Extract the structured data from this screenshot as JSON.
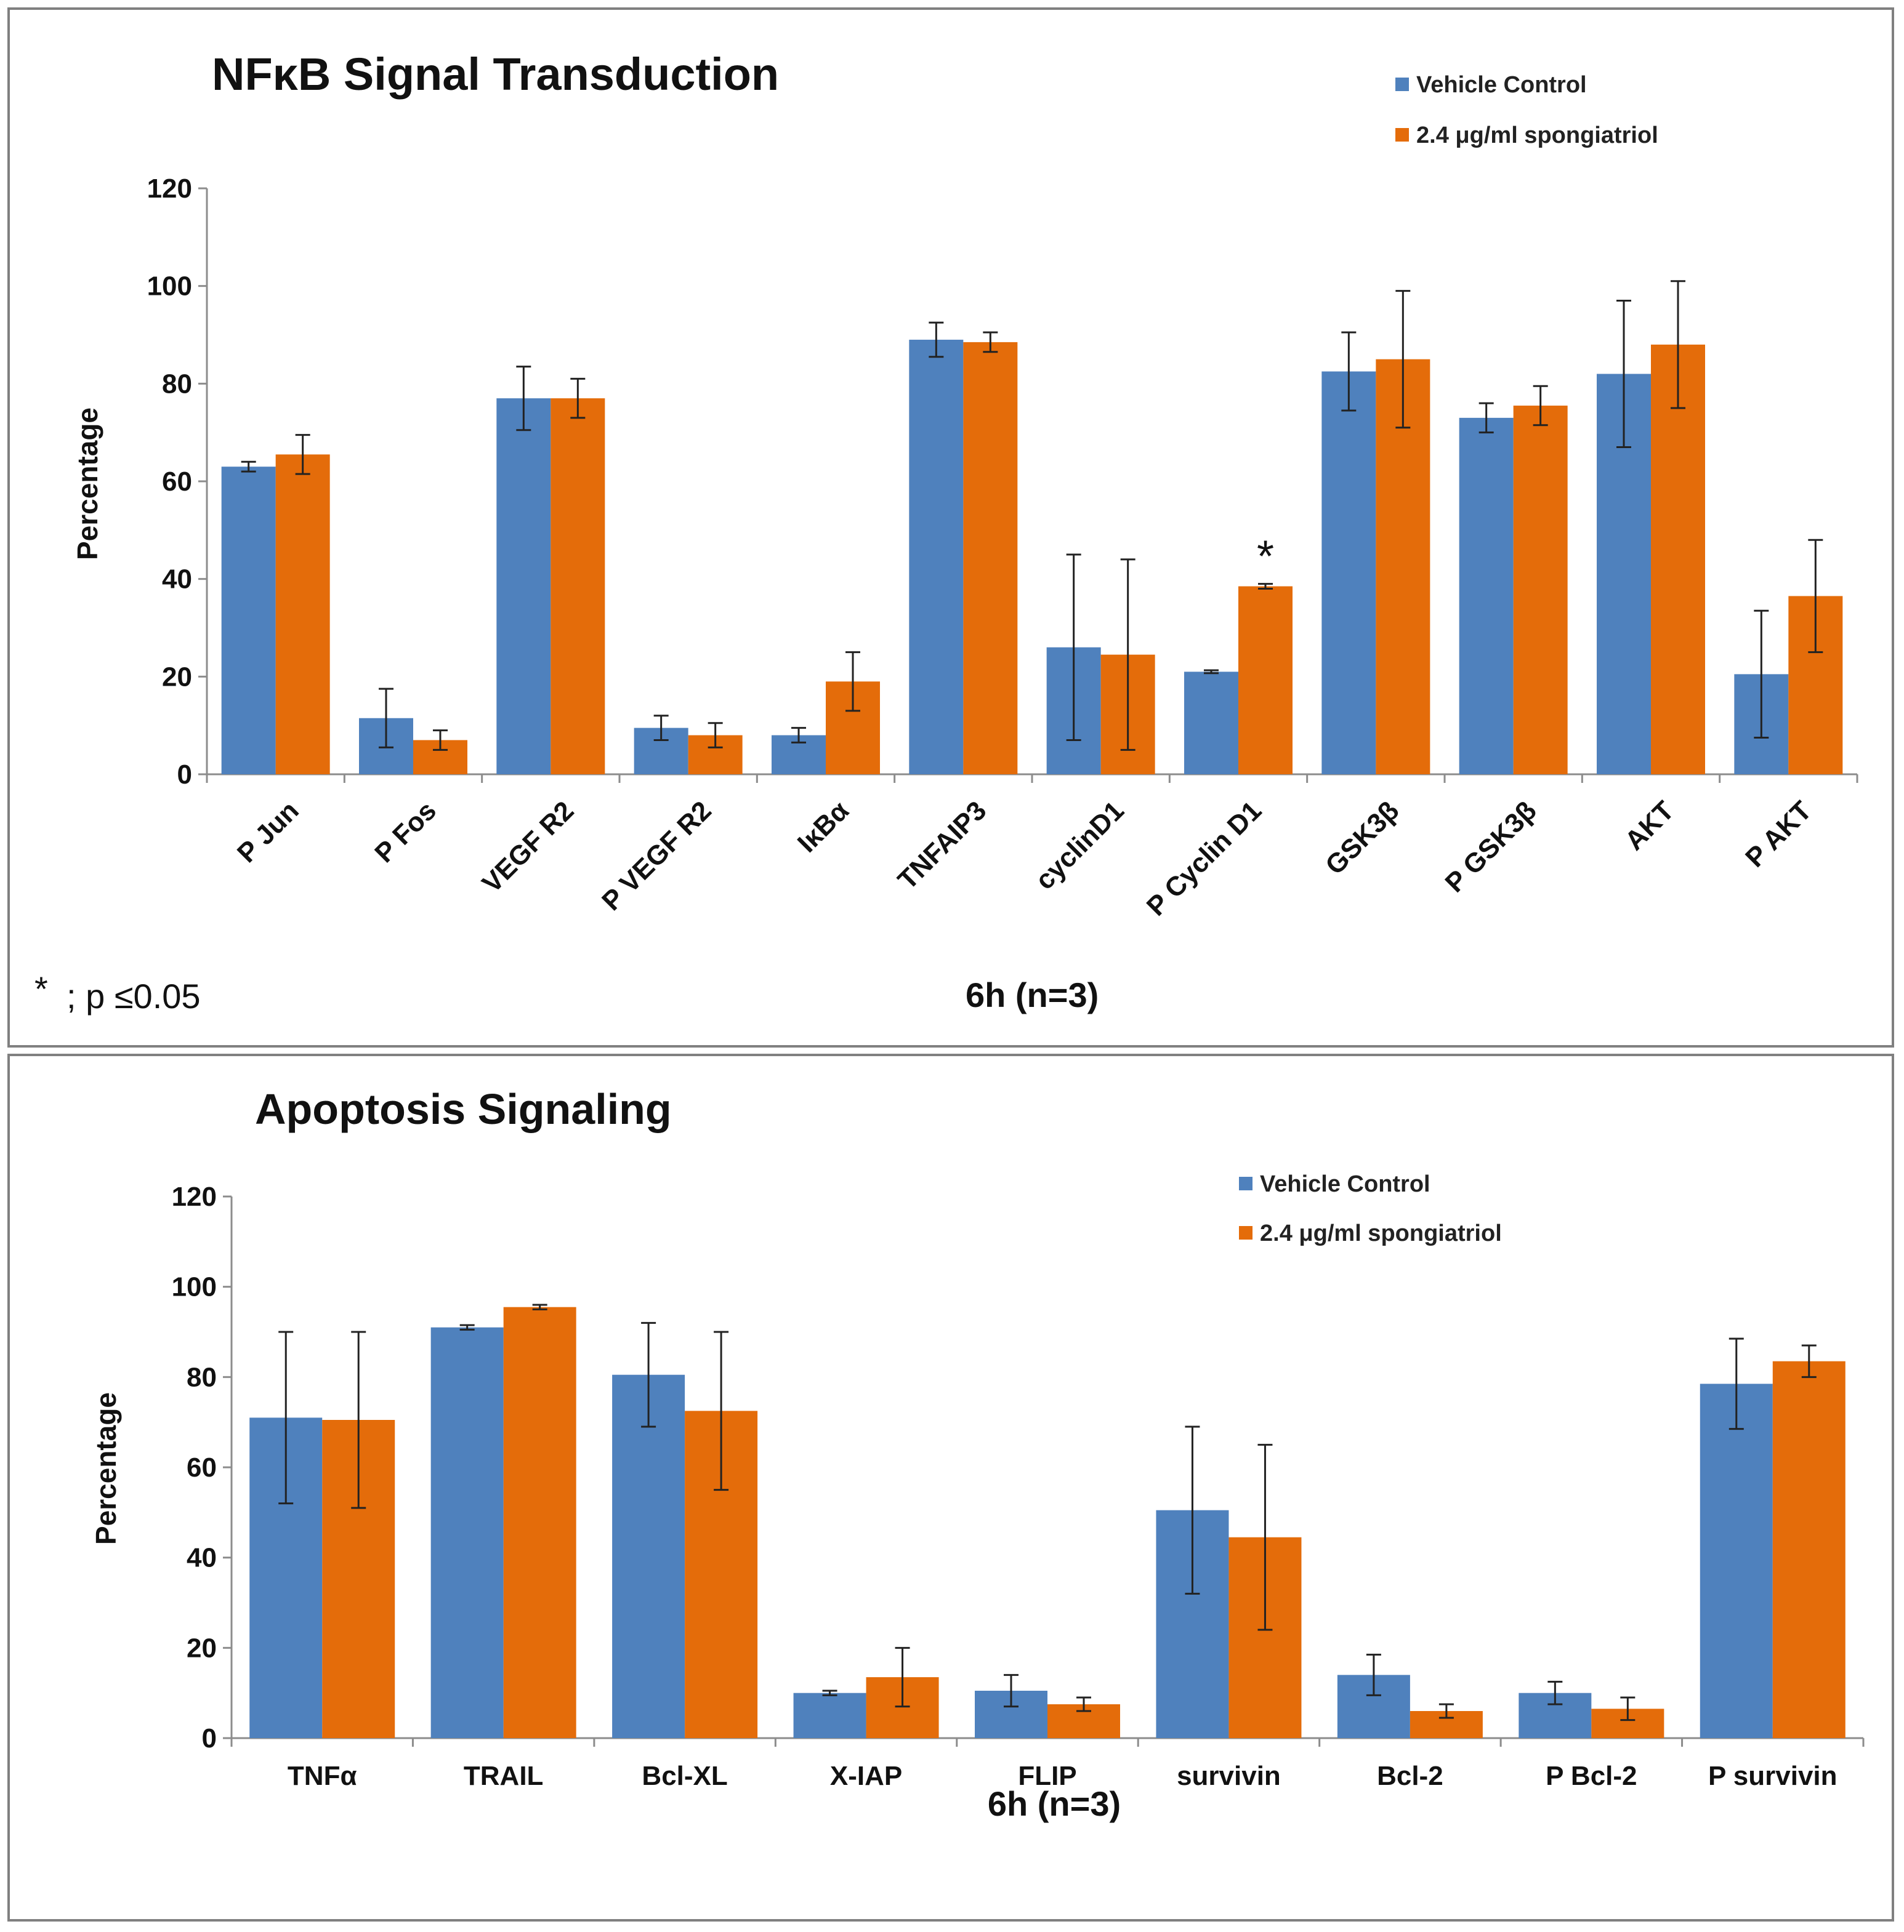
{
  "colors": {
    "vehicle": "#4f81bd",
    "treated": "#e46c0a"
  },
  "chart_data": [
    {
      "type": "bar",
      "title": "NFκB Signal Transduction",
      "ylabel": "Percentage",
      "xlabel": "6h (n=3)",
      "ylim": [
        0,
        120
      ],
      "yticks": [
        "0",
        "20",
        "40",
        "60",
        "80",
        "100",
        "120"
      ],
      "legend": [
        "Vehicle Control",
        "2.4 μg/ml spongiatriol"
      ],
      "legend_position": "top-right",
      "categories": [
        "P Jun",
        "P Fos",
        "VEGF R2",
        "P VEGF R2",
        "IκBα",
        "TNFAIP3",
        "cyclinD1",
        "P Cyclin D1",
        "GSK3β",
        "P GSK3β",
        "AKT",
        "P AKT"
      ],
      "series": [
        {
          "name": "Vehicle Control",
          "values": [
            63,
            11.5,
            77,
            9.5,
            8,
            89,
            26,
            21,
            82.5,
            73,
            82,
            20.5
          ],
          "errors": [
            1,
            6,
            6.5,
            2.5,
            1.5,
            3.5,
            19,
            0.3,
            8,
            3,
            15,
            13
          ]
        },
        {
          "name": "2.4 μg/ml spongiatriol",
          "values": [
            65.5,
            7,
            77,
            8,
            19,
            88.5,
            24.5,
            38.5,
            85,
            75.5,
            88,
            36.5
          ],
          "errors": [
            4,
            2,
            4,
            2.5,
            6,
            2,
            19.5,
            0.5,
            14,
            4,
            13,
            11.5
          ]
        }
      ],
      "annotations": [
        {
          "category": "P Cyclin D1",
          "text": "*"
        }
      ],
      "footnote_symbol": "*",
      "footnote_text": "; p ≤0.05"
    },
    {
      "type": "bar",
      "title": "Apoptosis Signaling",
      "ylabel": "Percentage",
      "xlabel": "6h (n=3)",
      "ylim": [
        0,
        120
      ],
      "yticks": [
        "0",
        "20",
        "40",
        "60",
        "80",
        "100",
        "120"
      ],
      "legend": [
        "Vehicle Control",
        "2.4 μg/ml spongiatriol"
      ],
      "legend_position": "top-right",
      "categories": [
        "TNFα",
        "TRAIL",
        "Bcl-XL",
        "X-IAP",
        "FLIP",
        "survivin",
        "Bcl-2",
        "P Bcl-2",
        "P survivin"
      ],
      "series": [
        {
          "name": "Vehicle Control",
          "values": [
            71,
            91,
            80.5,
            10,
            10.5,
            50.5,
            14,
            10,
            78.5
          ],
          "errors": [
            19,
            0.5,
            11.5,
            0.5,
            3.5,
            18.5,
            4.5,
            2.5,
            10
          ]
        },
        {
          "name": "2.4 μg/ml spongiatriol",
          "values": [
            70.5,
            95.5,
            72.5,
            13.5,
            7.5,
            44.5,
            6,
            6.5,
            83.5
          ],
          "errors": [
            19.5,
            0.5,
            17.5,
            6.5,
            1.5,
            20.5,
            1.5,
            2.5,
            3.5
          ]
        }
      ],
      "annotations": []
    }
  ]
}
